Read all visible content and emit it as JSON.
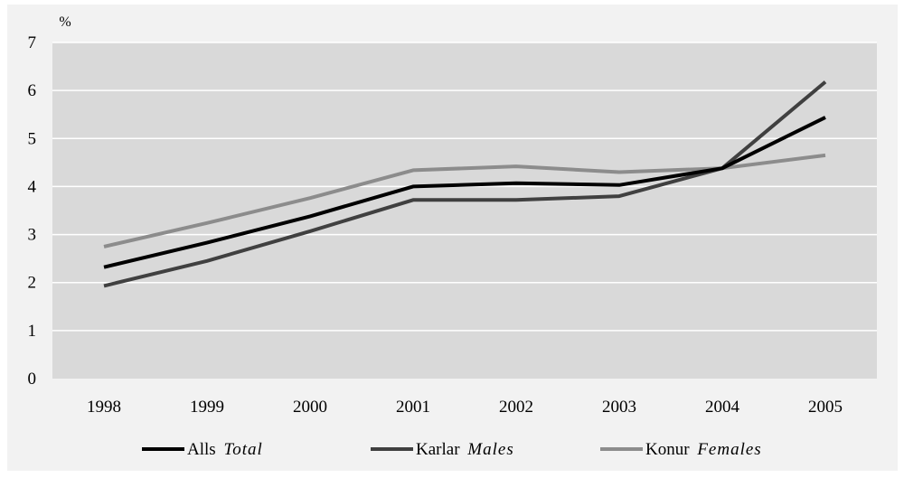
{
  "chart_data": {
    "type": "line",
    "ylabel": "%",
    "ylim": [
      0,
      7
    ],
    "yticks": [
      0,
      1,
      2,
      3,
      4,
      5,
      6,
      7
    ],
    "categories": [
      "1998",
      "1999",
      "2000",
      "2001",
      "2002",
      "2003",
      "2004",
      "2005"
    ],
    "grid": true,
    "legend_position": "bottom",
    "series": [
      {
        "name": "Alls",
        "name_en": "Total",
        "color": "#000000",
        "values": [
          2.32,
          2.83,
          3.38,
          4.0,
          4.07,
          4.03,
          4.38,
          5.44
        ]
      },
      {
        "name": "Karlar",
        "name_en": "Males",
        "color": "#404040",
        "values": [
          1.93,
          2.45,
          3.07,
          3.72,
          3.72,
          3.8,
          4.38,
          6.18
        ]
      },
      {
        "name": "Konur",
        "name_en": "Females",
        "color": "#8c8c8c",
        "values": [
          2.75,
          3.24,
          3.76,
          4.34,
          4.42,
          4.3,
          4.38,
          4.65
        ]
      }
    ],
    "plot_background": "#d9d9d9",
    "page_background": "#f2f2f2",
    "gridline_color": "#ffffff"
  }
}
